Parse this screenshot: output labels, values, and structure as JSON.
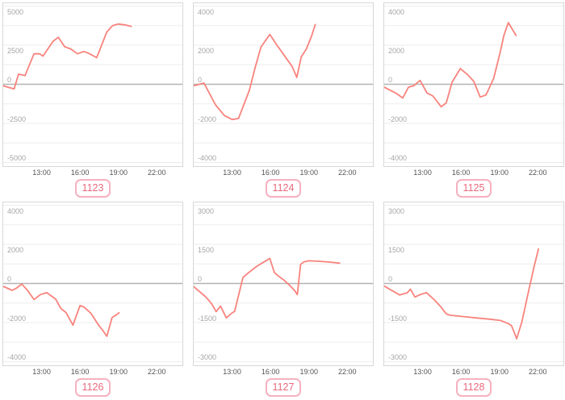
{
  "style": {
    "series_line_color": "#f8837d",
    "zero_line_color": "#b3b3b3",
    "grid_line_color": "#ededed",
    "panel_border_color": "#d7d7d7",
    "y_label_color": "#a6a6a6",
    "x_label_color": "#545454",
    "badge_text_color": "#e8697d",
    "badge_border_color": "#f6b1bf",
    "background": "#ffffff"
  },
  "chart_data": [
    {
      "type": "line",
      "badge": "1123",
      "ylim": [
        -5000,
        5000
      ],
      "y_tick_values": [
        5000,
        2500,
        0,
        -2500,
        -5000
      ],
      "y_tick_labels": [
        "5000",
        "2500",
        "0",
        "-2500",
        "-5000"
      ],
      "x_range_hours": [
        10,
        24
      ],
      "x_ticks": [
        {
          "label": "13:00",
          "hour": 13
        },
        {
          "label": "16:00",
          "hour": 16
        },
        {
          "label": "19:00",
          "hour": 19
        },
        {
          "label": "22:00",
          "hour": 22
        }
      ],
      "grid": "horizontal-minor",
      "series": [
        {
          "name": "value",
          "points": [
            [
              10.0,
              -100
            ],
            [
              10.85,
              -300
            ],
            [
              11.2,
              650
            ],
            [
              11.7,
              550
            ],
            [
              12.4,
              1950
            ],
            [
              12.85,
              1950
            ],
            [
              13.1,
              1800
            ],
            [
              13.9,
              2750
            ],
            [
              14.3,
              3000
            ],
            [
              14.8,
              2400
            ],
            [
              15.3,
              2250
            ],
            [
              15.8,
              1950
            ],
            [
              16.3,
              2100
            ],
            [
              16.75,
              1950
            ],
            [
              17.3,
              1700
            ],
            [
              18.1,
              3350
            ],
            [
              18.55,
              3750
            ],
            [
              19.0,
              3850
            ],
            [
              19.5,
              3800
            ],
            [
              20.0,
              3700
            ]
          ]
        }
      ]
    },
    {
      "type": "line",
      "badge": "1124",
      "ylim": [
        -4000,
        4000
      ],
      "y_tick_values": [
        4000,
        2000,
        0,
        -2000,
        -4000
      ],
      "y_tick_labels": [
        "4000",
        "2000",
        "0",
        "-2000",
        "-4000"
      ],
      "x_range_hours": [
        10,
        24
      ],
      "x_ticks": [
        {
          "label": "13:00",
          "hour": 13
        },
        {
          "label": "16:00",
          "hour": 16
        },
        {
          "label": "19:00",
          "hour": 19
        },
        {
          "label": "22:00",
          "hour": 22
        }
      ],
      "grid": "horizontal-minor",
      "series": [
        {
          "name": "value",
          "points": [
            [
              10.0,
              -80
            ],
            [
              10.8,
              60
            ],
            [
              11.7,
              -1050
            ],
            [
              12.4,
              -1600
            ],
            [
              13.0,
              -1800
            ],
            [
              13.5,
              -1750
            ],
            [
              14.35,
              -300
            ],
            [
              14.8,
              850
            ],
            [
              15.25,
              1900
            ],
            [
              15.95,
              2550
            ],
            [
              16.5,
              2000
            ],
            [
              17.1,
              1450
            ],
            [
              17.7,
              900
            ],
            [
              18.05,
              350
            ],
            [
              18.4,
              1400
            ],
            [
              18.8,
              1800
            ],
            [
              19.2,
              2450
            ],
            [
              19.5,
              3050
            ]
          ]
        }
      ]
    },
    {
      "type": "line",
      "badge": "1125",
      "ylim": [
        -4000,
        4000
      ],
      "y_tick_values": [
        4000,
        2000,
        0,
        -2000,
        -4000
      ],
      "y_tick_labels": [
        "4000",
        "2000",
        "0",
        "-2000",
        "-4000"
      ],
      "x_range_hours": [
        10,
        24
      ],
      "x_ticks": [
        {
          "label": "13:00",
          "hour": 13
        },
        {
          "label": "16:00",
          "hour": 16
        },
        {
          "label": "19:00",
          "hour": 19
        },
        {
          "label": "22:00",
          "hour": 22
        }
      ],
      "grid": "horizontal-minor",
      "series": [
        {
          "name": "value",
          "points": [
            [
              10.0,
              -150
            ],
            [
              10.9,
              -450
            ],
            [
              11.45,
              -700
            ],
            [
              11.9,
              -150
            ],
            [
              12.3,
              -80
            ],
            [
              12.8,
              200
            ],
            [
              13.35,
              -450
            ],
            [
              13.8,
              -600
            ],
            [
              14.45,
              -1150
            ],
            [
              14.85,
              -950
            ],
            [
              15.3,
              100
            ],
            [
              15.95,
              800
            ],
            [
              16.5,
              500
            ],
            [
              17.0,
              150
            ],
            [
              17.5,
              -650
            ],
            [
              17.95,
              -550
            ],
            [
              18.55,
              300
            ],
            [
              19.05,
              1600
            ],
            [
              19.35,
              2500
            ],
            [
              19.7,
              3150
            ],
            [
              20.3,
              2500
            ]
          ]
        }
      ]
    },
    {
      "type": "line",
      "badge": "1126",
      "ylim": [
        -4000,
        4000
      ],
      "y_tick_values": [
        4000,
        2000,
        0,
        -2000,
        -4000
      ],
      "y_tick_labels": [
        "4000",
        "2000",
        "0",
        "-2000",
        "-4000"
      ],
      "x_range_hours": [
        10,
        24
      ],
      "x_ticks": [
        {
          "label": "13:00",
          "hour": 13
        },
        {
          "label": "16:00",
          "hour": 16
        },
        {
          "label": "19:00",
          "hour": 19
        },
        {
          "label": "22:00",
          "hour": 22
        }
      ],
      "grid": "horizontal-minor",
      "series": [
        {
          "name": "value",
          "points": [
            [
              10.0,
              -150
            ],
            [
              10.7,
              -350
            ],
            [
              11.0,
              -250
            ],
            [
              11.45,
              -30
            ],
            [
              11.9,
              -350
            ],
            [
              12.4,
              -820
            ],
            [
              12.9,
              -570
            ],
            [
              13.4,
              -470
            ],
            [
              14.1,
              -800
            ],
            [
              14.5,
              -1280
            ],
            [
              14.9,
              -1480
            ],
            [
              15.45,
              -2130
            ],
            [
              16.0,
              -1130
            ],
            [
              16.3,
              -1200
            ],
            [
              16.85,
              -1520
            ],
            [
              17.4,
              -2080
            ],
            [
              17.8,
              -2420
            ],
            [
              18.1,
              -2700
            ],
            [
              18.5,
              -1750
            ],
            [
              18.8,
              -1620
            ],
            [
              19.05,
              -1500
            ]
          ]
        }
      ]
    },
    {
      "type": "line",
      "badge": "1127",
      "ylim": [
        -3000,
        3000
      ],
      "y_tick_values": [
        3000,
        1500,
        0,
        -1500,
        -3000
      ],
      "y_tick_labels": [
        "3000",
        "1500",
        "0",
        "-1500",
        "-3000"
      ],
      "x_range_hours": [
        10,
        24
      ],
      "x_ticks": [
        {
          "label": "13:00",
          "hour": 13
        },
        {
          "label": "16:00",
          "hour": 16
        },
        {
          "label": "19:00",
          "hour": 19
        },
        {
          "label": "22:00",
          "hour": 22
        }
      ],
      "grid": "horizontal-minor",
      "series": [
        {
          "name": "value",
          "points": [
            [
              10.0,
              -120
            ],
            [
              10.95,
              -520
            ],
            [
              11.4,
              -780
            ],
            [
              11.75,
              -1080
            ],
            [
              12.1,
              -870
            ],
            [
              12.55,
              -1320
            ],
            [
              13.0,
              -1130
            ],
            [
              13.2,
              -1070
            ],
            [
              13.85,
              230
            ],
            [
              14.25,
              400
            ],
            [
              14.9,
              650
            ],
            [
              15.5,
              830
            ],
            [
              15.95,
              960
            ],
            [
              16.3,
              420
            ],
            [
              16.6,
              290
            ],
            [
              17.05,
              130
            ],
            [
              17.5,
              -70
            ],
            [
              17.9,
              -280
            ],
            [
              18.1,
              -430
            ],
            [
              18.35,
              730
            ],
            [
              18.6,
              830
            ],
            [
              19.0,
              870
            ],
            [
              19.8,
              850
            ],
            [
              20.6,
              820
            ],
            [
              21.4,
              780
            ]
          ]
        }
      ]
    },
    {
      "type": "line",
      "badge": "1128",
      "ylim": [
        -3000,
        3000
      ],
      "y_tick_values": [
        3000,
        1500,
        0,
        -1500,
        -3000
      ],
      "y_tick_labels": [
        "3000",
        "1500",
        "0",
        "-1500",
        "-3000"
      ],
      "x_range_hours": [
        10,
        24
      ],
      "x_ticks": [
        {
          "label": "13:00",
          "hour": 13
        },
        {
          "label": "16:00",
          "hour": 16
        },
        {
          "label": "19:00",
          "hour": 19
        },
        {
          "label": "22:00",
          "hour": 22
        }
      ],
      "grid": "horizontal-minor",
      "series": [
        {
          "name": "value",
          "points": [
            [
              10.0,
              -100
            ],
            [
              10.6,
              -270
            ],
            [
              11.2,
              -440
            ],
            [
              11.8,
              -360
            ],
            [
              12.05,
              -220
            ],
            [
              12.4,
              -520
            ],
            [
              12.85,
              -420
            ],
            [
              13.3,
              -350
            ],
            [
              13.9,
              -620
            ],
            [
              14.4,
              -880
            ],
            [
              14.85,
              -1170
            ],
            [
              15.15,
              -1220
            ],
            [
              16.2,
              -1270
            ],
            [
              17.2,
              -1320
            ],
            [
              18.25,
              -1370
            ],
            [
              19.1,
              -1420
            ],
            [
              19.7,
              -1540
            ],
            [
              19.95,
              -1620
            ],
            [
              20.35,
              -2120
            ],
            [
              20.75,
              -1480
            ],
            [
              21.3,
              -250
            ],
            [
              21.7,
              620
            ],
            [
              22.05,
              1320
            ]
          ]
        }
      ]
    }
  ]
}
